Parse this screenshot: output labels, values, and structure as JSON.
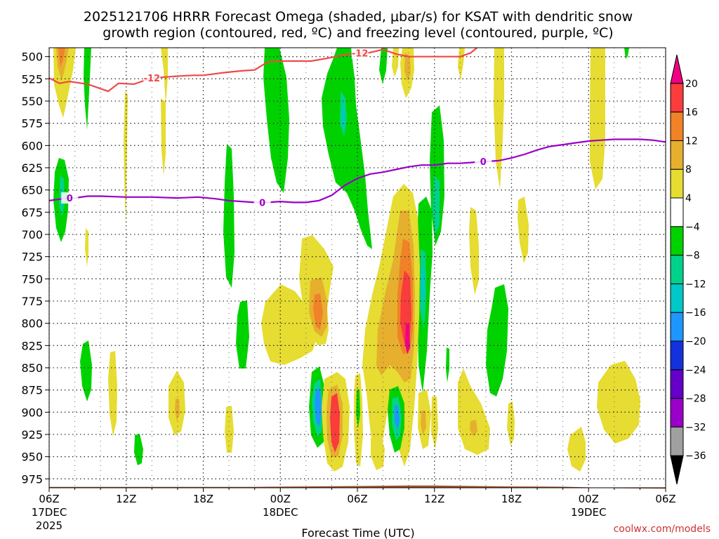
{
  "chart_data": {
    "type": "heatmap",
    "title_line1": "2025121706 HRRR Forecast Omega (shaded, μbar/s) for KSAT with dendritic snow",
    "title_line2": "growth region (contoured, red, ºC) and freezing level (contoured, purple, ºC)",
    "xlabel": "Forecast Time (UTC)",
    "ylabel": "",
    "credit": "coolwx.com/models",
    "y_ticks": [
      500,
      525,
      550,
      575,
      600,
      625,
      650,
      675,
      700,
      725,
      750,
      775,
      800,
      825,
      850,
      875,
      900,
      925,
      950,
      975
    ],
    "ylim": [
      985,
      490
    ],
    "xlim": [
      0,
      24
    ],
    "x_ticks": [
      {
        "x": 0,
        "label": "06Z",
        "sub1": "17DEC",
        "sub2": "2025"
      },
      {
        "x": 3,
        "label": "12Z",
        "sub1": "",
        "sub2": ""
      },
      {
        "x": 6,
        "label": "18Z",
        "sub1": "",
        "sub2": ""
      },
      {
        "x": 9,
        "label": "00Z",
        "sub1": "18DEC",
        "sub2": ""
      },
      {
        "x": 12,
        "label": "06Z",
        "sub1": "",
        "sub2": ""
      },
      {
        "x": 15,
        "label": "12Z",
        "sub1": "",
        "sub2": ""
      },
      {
        "x": 18,
        "label": "18Z",
        "sub1": "",
        "sub2": ""
      },
      {
        "x": 21,
        "label": "00Z",
        "sub1": "19DEC",
        "sub2": ""
      },
      {
        "x": 24,
        "label": "06Z",
        "sub1": "",
        "sub2": ""
      }
    ],
    "grid": true,
    "colorbar": {
      "levels": [
        -36,
        -32,
        -28,
        -24,
        -20,
        -16,
        -12,
        -8,
        -4,
        4,
        8,
        12,
        16,
        20
      ],
      "colors": [
        "#000000",
        "#a0a0a0",
        "#9b00c8",
        "#6400c8",
        "#1432dc",
        "#1e96ff",
        "#00c8c8",
        "#00d28c",
        "#00d200",
        "#ffffff",
        "#e6dc32",
        "#e6af2d",
        "#f08228",
        "#fa3c3c",
        "#f00082"
      ]
    },
    "contours": [
      {
        "name": "-12",
        "color": "#f04848",
        "x": [
          0,
          0.4,
          0.8,
          1.5,
          2.0,
          2.3,
          2.7,
          3.3,
          4.0,
          4.5,
          5.0,
          5.6,
          6.0,
          6.8,
          7.5,
          8.0,
          8.5,
          9.0,
          9.6,
          10.2,
          10.8,
          11.5,
          12.0,
          12.4,
          13.0,
          13.5,
          14.0,
          14.5,
          15.0,
          15.5,
          16.0,
          16.4,
          16.7
        ],
        "y": [
          524,
          530,
          528,
          531,
          536,
          539,
          530,
          531,
          524,
          523,
          522,
          521,
          521,
          518,
          516,
          515,
          506,
          505,
          505,
          505,
          502,
          498,
          496,
          496,
          492,
          497,
          500,
          500,
          500,
          500,
          500,
          496,
          489
        ],
        "labels": [
          {
            "x": 4.0,
            "text": "-12"
          },
          {
            "x": 12.1,
            "text": "-12"
          }
        ]
      },
      {
        "name": "0",
        "color": "#9a00c8",
        "x": [
          0,
          0.5,
          1.0,
          1.5,
          2.0,
          3.0,
          4.0,
          5.0,
          5.8,
          6.5,
          7.0,
          8.0,
          8.5,
          9.0,
          9.5,
          10.0,
          10.5,
          11.0,
          11.5,
          12.0,
          12.5,
          13.0,
          13.5,
          14.0,
          14.5,
          15.0,
          15.5,
          16.0,
          16.5,
          17.0,
          17.5,
          18.0,
          18.5,
          19.0,
          19.5,
          20.0,
          20.5,
          21.0,
          21.5,
          22.0,
          22.5,
          23.0,
          23.5,
          24.0
        ],
        "y": [
          662,
          660,
          659,
          657,
          657,
          658,
          658,
          659,
          658,
          660,
          662,
          664,
          664,
          663,
          664,
          664,
          662,
          656,
          645,
          637,
          632,
          630,
          627,
          624,
          622,
          622,
          620,
          620,
          619,
          618,
          617,
          614,
          610,
          605,
          601,
          599,
          597,
          595,
          594,
          593,
          593,
          593,
          594,
          596
        ],
        "labels": [
          {
            "x": 0.8,
            "text": "0"
          },
          {
            "x": 8.3,
            "text": "0"
          },
          {
            "x": 16.9,
            "text": "0"
          }
        ]
      }
    ],
    "terrain_color": "#a0522d"
  }
}
